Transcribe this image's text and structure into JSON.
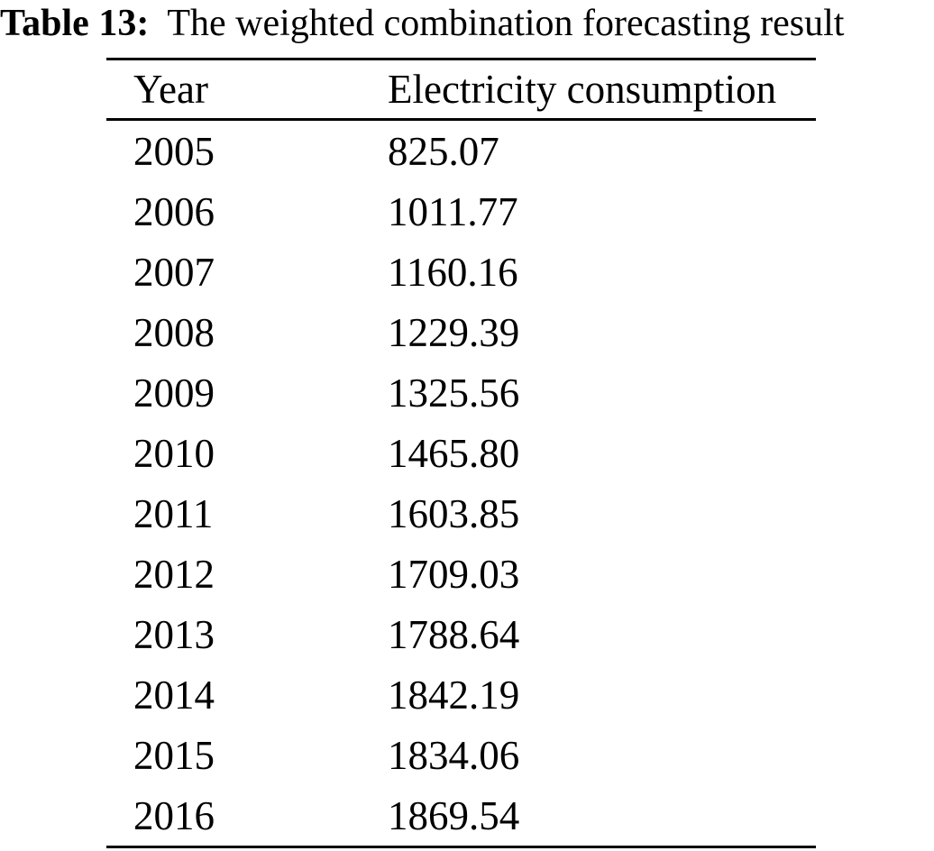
{
  "caption": {
    "label": "Table 13:",
    "text": "The weighted combination forecasting result"
  },
  "table": {
    "headers": {
      "year": "Year",
      "consumption": "Electricity consumption"
    },
    "rows": [
      [
        "2005",
        "825.07"
      ],
      [
        "2006",
        "1011.77"
      ],
      [
        "2007",
        "1160.16"
      ],
      [
        "2008",
        "1229.39"
      ],
      [
        "2009",
        "1325.56"
      ],
      [
        "2010",
        "1465.80"
      ],
      [
        "2011",
        "1603.85"
      ],
      [
        "2012",
        "1709.03"
      ],
      [
        "2013",
        "1788.64"
      ],
      [
        "2014",
        "1842.19"
      ],
      [
        "2015",
        "1834.06"
      ],
      [
        "2016",
        "1869.54"
      ]
    ]
  },
  "chart_data": {
    "type": "table",
    "title": "Table 13: The weighted combination forecasting result",
    "columns": [
      "Year",
      "Electricity consumption"
    ],
    "rows": [
      [
        2005,
        825.07
      ],
      [
        2006,
        1011.77
      ],
      [
        2007,
        1160.16
      ],
      [
        2008,
        1229.39
      ],
      [
        2009,
        1325.56
      ],
      [
        2010,
        1465.8
      ],
      [
        2011,
        1603.85
      ],
      [
        2012,
        1709.03
      ],
      [
        2013,
        1788.64
      ],
      [
        2014,
        1842.19
      ],
      [
        2015,
        1834.06
      ],
      [
        2016,
        1869.54
      ]
    ]
  }
}
